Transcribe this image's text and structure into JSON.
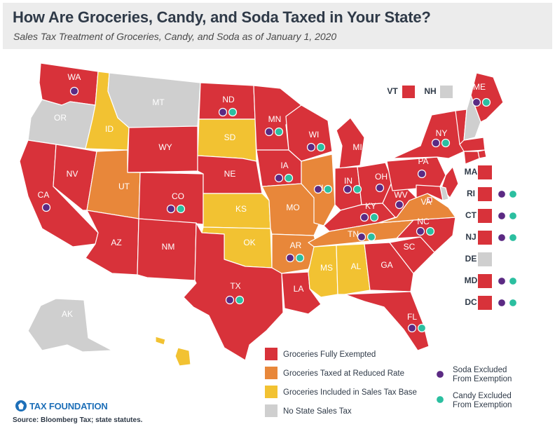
{
  "title": "How Are Groceries, Candy, and Soda Taxed in Your State?",
  "subtitle": "Sales Tax Treatment of Groceries, Candy, and Soda as of January 1, 2020",
  "colors": {
    "fully_exempted": "#d8323a",
    "reduced_rate": "#e8873a",
    "included_in_base": "#f2c232",
    "no_sales_tax": "#cfcfcf",
    "soda_dot": "#5b2a83",
    "candy_dot": "#2bbfa0"
  },
  "legend": {
    "categories": [
      {
        "key": "fully_exempted",
        "label": "Groceries Fully Exempted"
      },
      {
        "key": "reduced_rate",
        "label": "Groceries Taxed at Reduced Rate"
      },
      {
        "key": "included_in_base",
        "label": "Groceries Included in Sales Tax Base"
      },
      {
        "key": "no_sales_tax",
        "label": "No State Sales Tax"
      }
    ],
    "soda_label": [
      "Soda Excluded",
      "From Exemption"
    ],
    "candy_label": [
      "Candy Excluded",
      "From Exemption"
    ]
  },
  "states": [
    {
      "abbr": "WA",
      "category": "fully_exempted",
      "soda": true,
      "candy": false
    },
    {
      "abbr": "OR",
      "category": "no_sales_tax",
      "soda": false,
      "candy": false
    },
    {
      "abbr": "CA",
      "category": "fully_exempted",
      "soda": true,
      "candy": false
    },
    {
      "abbr": "ID",
      "category": "included_in_base",
      "soda": false,
      "candy": false
    },
    {
      "abbr": "NV",
      "category": "fully_exempted",
      "soda": false,
      "candy": false
    },
    {
      "abbr": "MT",
      "category": "no_sales_tax",
      "soda": false,
      "candy": false
    },
    {
      "abbr": "WY",
      "category": "fully_exempted",
      "soda": false,
      "candy": false
    },
    {
      "abbr": "UT",
      "category": "reduced_rate",
      "soda": false,
      "candy": false
    },
    {
      "abbr": "AZ",
      "category": "fully_exempted",
      "soda": false,
      "candy": false
    },
    {
      "abbr": "CO",
      "category": "fully_exempted",
      "soda": true,
      "candy": true
    },
    {
      "abbr": "NM",
      "category": "fully_exempted",
      "soda": false,
      "candy": false
    },
    {
      "abbr": "ND",
      "category": "fully_exempted",
      "soda": true,
      "candy": true
    },
    {
      "abbr": "SD",
      "category": "included_in_base",
      "soda": false,
      "candy": false
    },
    {
      "abbr": "NE",
      "category": "fully_exempted",
      "soda": false,
      "candy": false
    },
    {
      "abbr": "KS",
      "category": "included_in_base",
      "soda": false,
      "candy": false
    },
    {
      "abbr": "OK",
      "category": "included_in_base",
      "soda": false,
      "candy": false
    },
    {
      "abbr": "TX",
      "category": "fully_exempted",
      "soda": true,
      "candy": true
    },
    {
      "abbr": "MN",
      "category": "fully_exempted",
      "soda": true,
      "candy": true
    },
    {
      "abbr": "IA",
      "category": "fully_exempted",
      "soda": true,
      "candy": true
    },
    {
      "abbr": "MO",
      "category": "reduced_rate",
      "soda": false,
      "candy": false
    },
    {
      "abbr": "AR",
      "category": "reduced_rate",
      "soda": true,
      "candy": true
    },
    {
      "abbr": "LA",
      "category": "fully_exempted",
      "soda": false,
      "candy": false
    },
    {
      "abbr": "WI",
      "category": "fully_exempted",
      "soda": true,
      "candy": true
    },
    {
      "abbr": "IL",
      "category": "reduced_rate",
      "soda": true,
      "candy": true
    },
    {
      "abbr": "MS",
      "category": "included_in_base",
      "soda": false,
      "candy": false
    },
    {
      "abbr": "MI",
      "category": "fully_exempted",
      "soda": false,
      "candy": false
    },
    {
      "abbr": "IN",
      "category": "fully_exempted",
      "soda": true,
      "candy": true
    },
    {
      "abbr": "KY",
      "category": "fully_exempted",
      "soda": true,
      "candy": true
    },
    {
      "abbr": "TN",
      "category": "reduced_rate",
      "soda": true,
      "candy": true
    },
    {
      "abbr": "AL",
      "category": "included_in_base",
      "soda": false,
      "candy": false
    },
    {
      "abbr": "OH",
      "category": "fully_exempted",
      "soda": true,
      "candy": false
    },
    {
      "abbr": "GA",
      "category": "fully_exempted",
      "soda": false,
      "candy": false
    },
    {
      "abbr": "FL",
      "category": "fully_exempted",
      "soda": true,
      "candy": true
    },
    {
      "abbr": "SC",
      "category": "fully_exempted",
      "soda": false,
      "candy": false
    },
    {
      "abbr": "NC",
      "category": "fully_exempted",
      "soda": true,
      "candy": true
    },
    {
      "abbr": "VA",
      "category": "reduced_rate",
      "soda": false,
      "candy": false
    },
    {
      "abbr": "WV",
      "category": "fully_exempted",
      "soda": true,
      "candy": false
    },
    {
      "abbr": "PA",
      "category": "fully_exempted",
      "soda": true,
      "candy": false
    },
    {
      "abbr": "NY",
      "category": "fully_exempted",
      "soda": true,
      "candy": true
    },
    {
      "abbr": "VT",
      "category": "fully_exempted",
      "soda": false,
      "candy": false
    },
    {
      "abbr": "NH",
      "category": "no_sales_tax",
      "soda": false,
      "candy": false
    },
    {
      "abbr": "ME",
      "category": "fully_exempted",
      "soda": true,
      "candy": true
    },
    {
      "abbr": "MA",
      "category": "fully_exempted",
      "soda": false,
      "candy": false
    },
    {
      "abbr": "RI",
      "category": "fully_exempted",
      "soda": true,
      "candy": true
    },
    {
      "abbr": "CT",
      "category": "fully_exempted",
      "soda": true,
      "candy": true
    },
    {
      "abbr": "NJ",
      "category": "fully_exempted",
      "soda": true,
      "candy": true
    },
    {
      "abbr": "DE",
      "category": "no_sales_tax",
      "soda": false,
      "candy": false
    },
    {
      "abbr": "MD",
      "category": "fully_exempted",
      "soda": true,
      "candy": true
    },
    {
      "abbr": "DC",
      "category": "fully_exempted",
      "soda": true,
      "candy": true
    },
    {
      "abbr": "AK",
      "category": "no_sales_tax",
      "soda": false,
      "candy": false
    },
    {
      "abbr": "HI",
      "category": "included_in_base",
      "soda": false,
      "candy": false
    }
  ],
  "small_state_boxes_top": [
    "VT",
    "NH"
  ],
  "small_state_boxes_side": [
    "MA",
    "RI",
    "CT",
    "NJ",
    "DE",
    "MD",
    "DC"
  ],
  "brand": "TAX FOUNDATION",
  "source": "Source: Bloomberg Tax; state statutes."
}
